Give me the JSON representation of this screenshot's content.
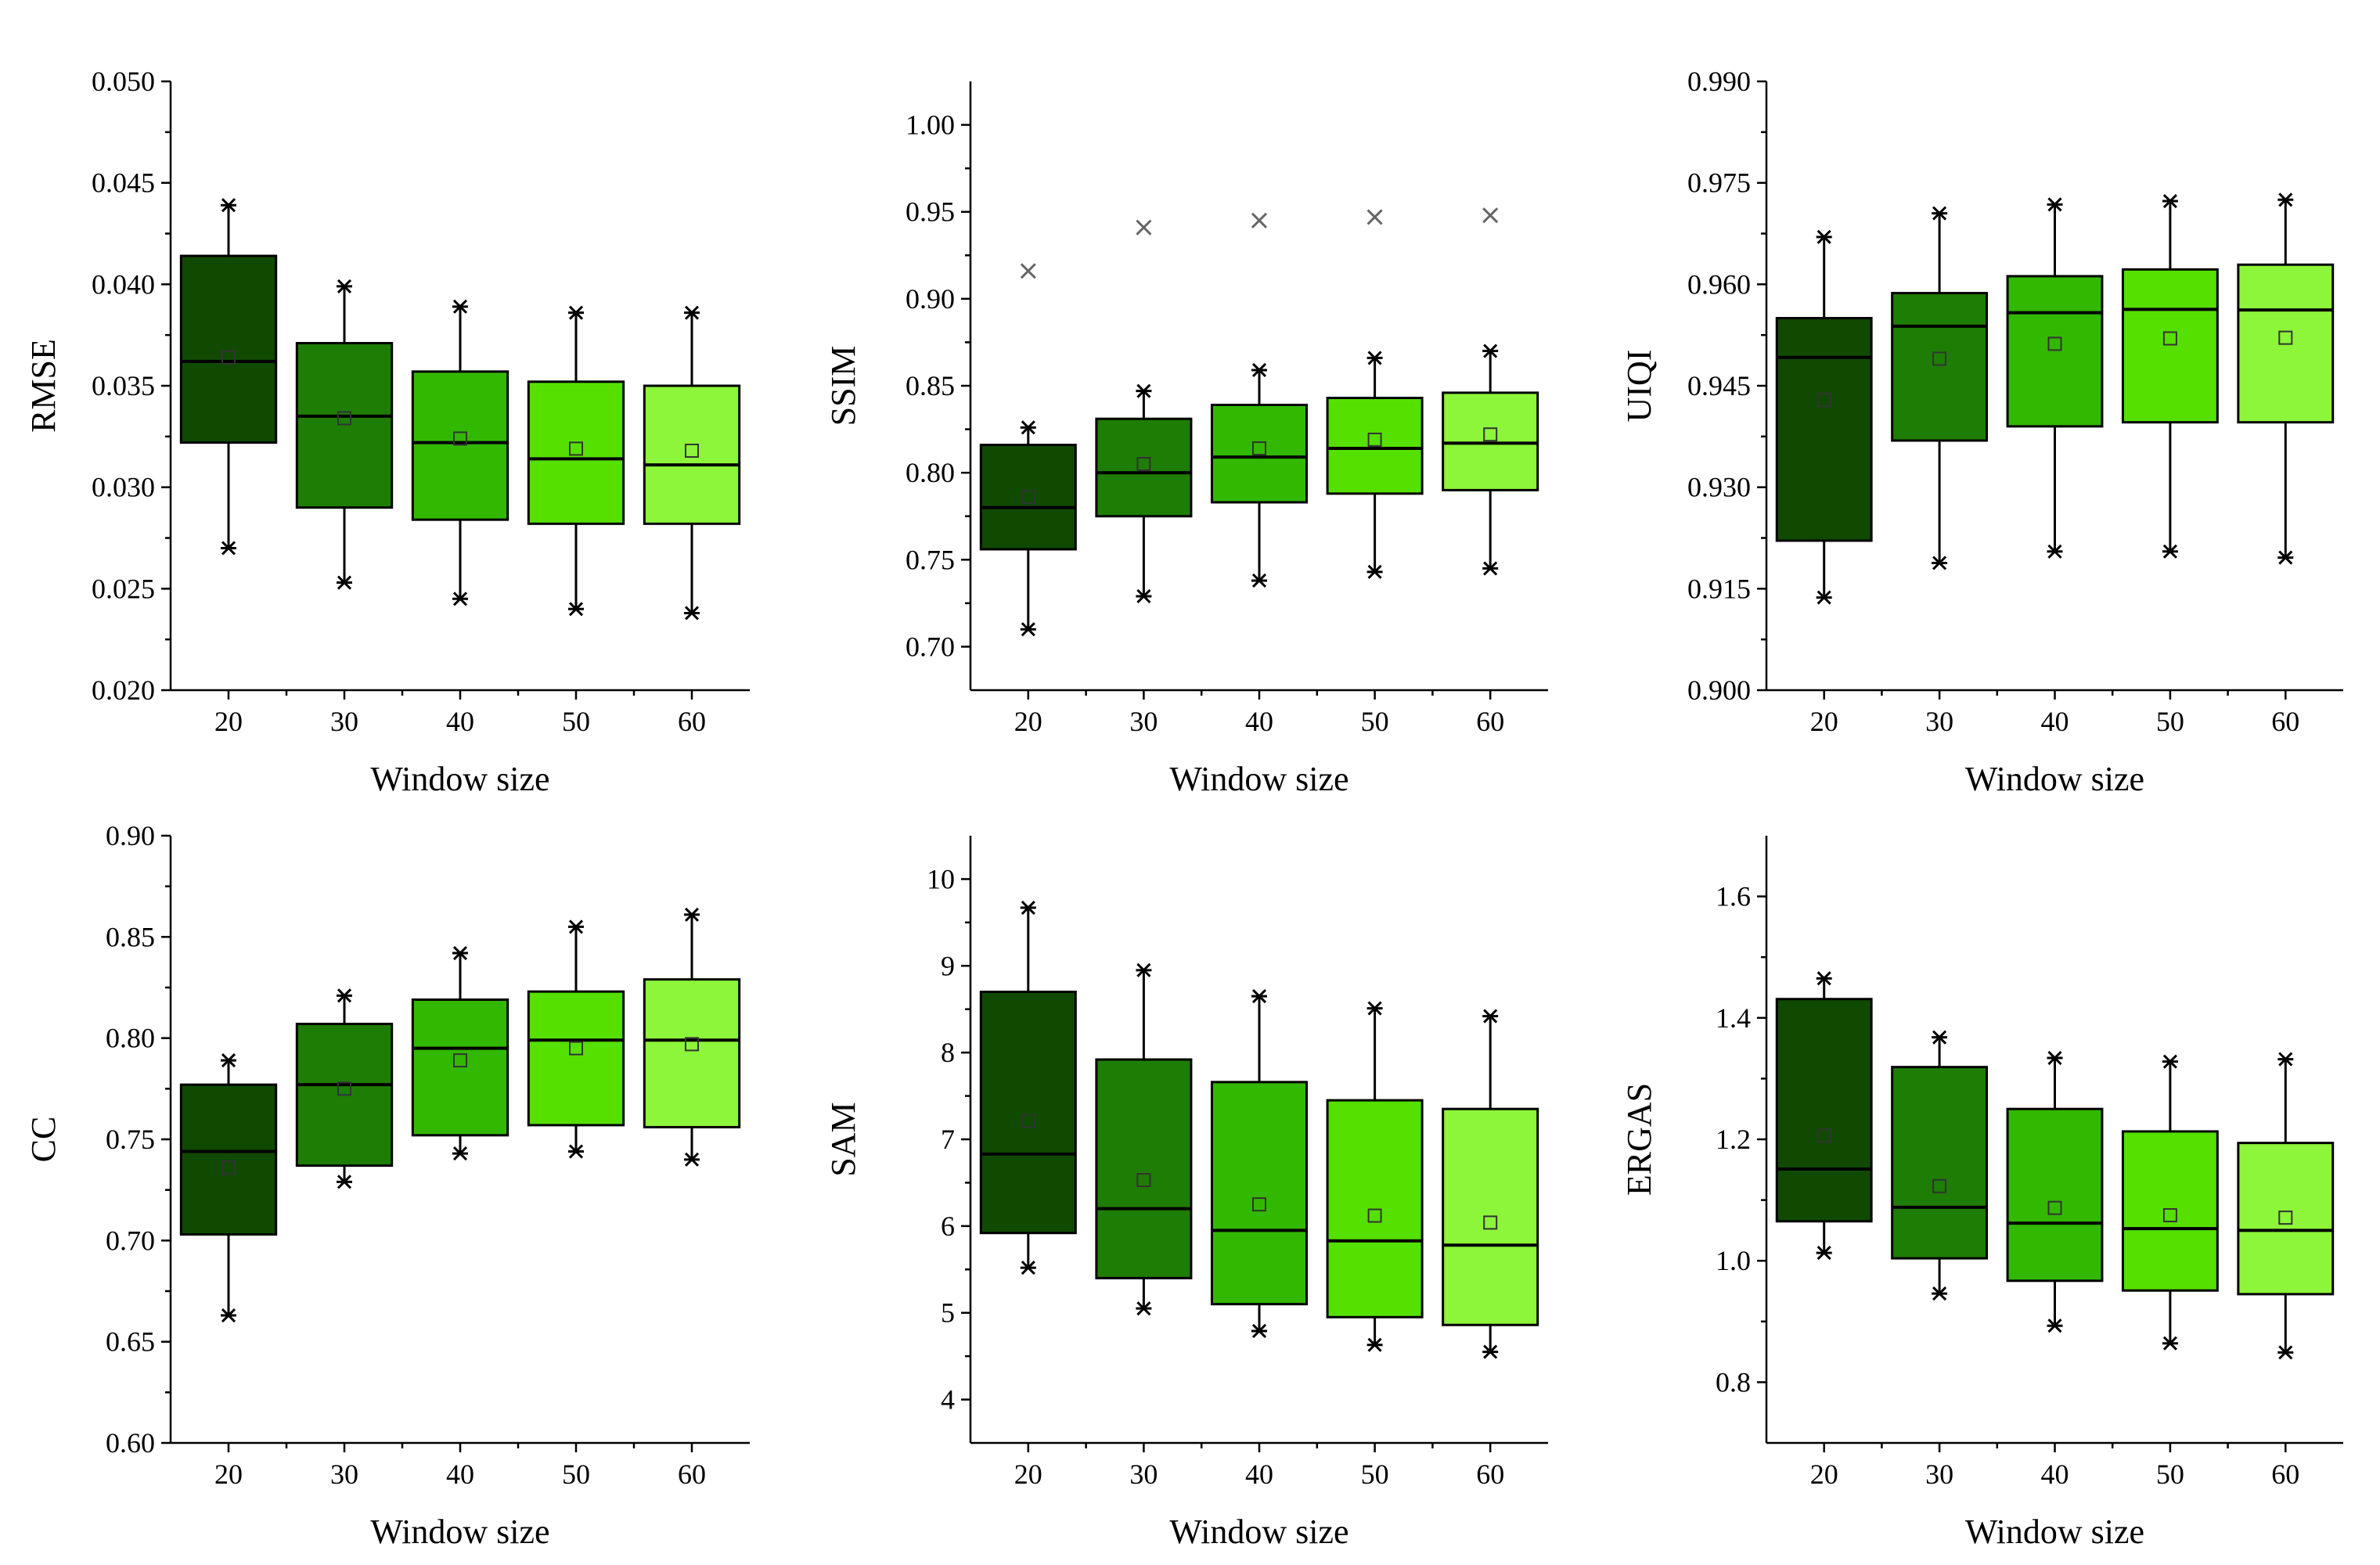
{
  "chart_data": [
    {
      "type": "box",
      "ylabel": "RMSE",
      "xlabel": "Window size",
      "categories": [
        "20",
        "30",
        "40",
        "50",
        "60"
      ],
      "ylim": [
        0.02,
        0.05
      ],
      "yticks": [
        "0.020",
        "0.025",
        "0.030",
        "0.035",
        "0.040",
        "0.045",
        "0.050"
      ],
      "boxes": [
        {
          "min": 0.027,
          "q1": 0.0322,
          "median": 0.0362,
          "q3": 0.0414,
          "max": 0.0439,
          "mean": 0.0364
        },
        {
          "min": 0.0253,
          "q1": 0.029,
          "median": 0.0335,
          "q3": 0.0371,
          "max": 0.0399,
          "mean": 0.0334
        },
        {
          "min": 0.0245,
          "q1": 0.0284,
          "median": 0.0322,
          "q3": 0.0357,
          "max": 0.0389,
          "mean": 0.0324
        },
        {
          "min": 0.024,
          "q1": 0.0282,
          "median": 0.0314,
          "q3": 0.0352,
          "max": 0.0386,
          "mean": 0.0319
        },
        {
          "min": 0.0238,
          "q1": 0.0282,
          "median": 0.0311,
          "q3": 0.035,
          "max": 0.0386,
          "mean": 0.0318
        }
      ]
    },
    {
      "type": "box",
      "ylabel": "SSIM",
      "xlabel": "Window size",
      "categories": [
        "20",
        "30",
        "40",
        "50",
        "60"
      ],
      "ylim": [
        0.675,
        1.025
      ],
      "yticks": [
        "0.70",
        "0.75",
        "0.80",
        "0.85",
        "0.90",
        "0.95",
        "1.00"
      ],
      "boxes": [
        {
          "min": 0.71,
          "q1": 0.756,
          "median": 0.78,
          "q3": 0.816,
          "max": 0.826,
          "mean": 0.786,
          "outlier": 0.916
        },
        {
          "min": 0.729,
          "q1": 0.775,
          "median": 0.8,
          "q3": 0.831,
          "max": 0.847,
          "mean": 0.805,
          "outlier": 0.941
        },
        {
          "min": 0.738,
          "q1": 0.783,
          "median": 0.809,
          "q3": 0.839,
          "max": 0.859,
          "mean": 0.814,
          "outlier": 0.945
        },
        {
          "min": 0.743,
          "q1": 0.788,
          "median": 0.814,
          "q3": 0.843,
          "max": 0.866,
          "mean": 0.819,
          "outlier": 0.947
        },
        {
          "min": 0.745,
          "q1": 0.79,
          "median": 0.817,
          "q3": 0.846,
          "max": 0.87,
          "mean": 0.822,
          "outlier": 0.948
        }
      ]
    },
    {
      "type": "box",
      "ylabel": "UIQI",
      "xlabel": "Window size",
      "categories": [
        "20",
        "30",
        "40",
        "50",
        "60"
      ],
      "ylim": [
        0.9,
        0.99
      ],
      "yticks": [
        "0.900",
        "0.915",
        "0.930",
        "0.945",
        "0.960",
        "0.975",
        "0.990"
      ],
      "boxes": [
        {
          "min": 0.9137,
          "q1": 0.9221,
          "median": 0.9492,
          "q3": 0.955,
          "max": 0.967,
          "mean": 0.9429
        },
        {
          "min": 0.9188,
          "q1": 0.9369,
          "median": 0.9538,
          "q3": 0.9587,
          "max": 0.9705,
          "mean": 0.949
        },
        {
          "min": 0.9205,
          "q1": 0.939,
          "median": 0.9558,
          "q3": 0.9612,
          "max": 0.9718,
          "mean": 0.9512
        },
        {
          "min": 0.9205,
          "q1": 0.9396,
          "median": 0.9563,
          "q3": 0.9622,
          "max": 0.9723,
          "mean": 0.952
        },
        {
          "min": 0.9196,
          "q1": 0.9396,
          "median": 0.9562,
          "q3": 0.9629,
          "max": 0.9725,
          "mean": 0.9521
        }
      ]
    },
    {
      "type": "box",
      "ylabel": "CC",
      "xlabel": "Window size",
      "categories": [
        "20",
        "30",
        "40",
        "50",
        "60"
      ],
      "ylim": [
        0.6,
        0.9
      ],
      "yticks": [
        "0.60",
        "0.65",
        "0.70",
        "0.75",
        "0.80",
        "0.85",
        "0.90"
      ],
      "boxes": [
        {
          "min": 0.663,
          "q1": 0.703,
          "median": 0.744,
          "q3": 0.777,
          "max": 0.789,
          "mean": 0.736
        },
        {
          "min": 0.729,
          "q1": 0.737,
          "median": 0.777,
          "q3": 0.807,
          "max": 0.821,
          "mean": 0.775
        },
        {
          "min": 0.743,
          "q1": 0.752,
          "median": 0.795,
          "q3": 0.819,
          "max": 0.842,
          "mean": 0.789
        },
        {
          "min": 0.744,
          "q1": 0.757,
          "median": 0.799,
          "q3": 0.823,
          "max": 0.855,
          "mean": 0.795
        },
        {
          "min": 0.74,
          "q1": 0.756,
          "median": 0.799,
          "q3": 0.829,
          "max": 0.861,
          "mean": 0.797
        }
      ]
    },
    {
      "type": "box",
      "ylabel": "SAM",
      "xlabel": "Window size",
      "categories": [
        "20",
        "30",
        "40",
        "50",
        "60"
      ],
      "ylim": [
        3.5,
        10.5
      ],
      "yticks": [
        "4",
        "5",
        "6",
        "7",
        "8",
        "9",
        "10"
      ],
      "boxes": [
        {
          "min": 5.52,
          "q1": 5.92,
          "median": 6.83,
          "q3": 8.7,
          "max": 9.67,
          "mean": 7.21
        },
        {
          "min": 5.05,
          "q1": 5.4,
          "median": 6.2,
          "q3": 7.92,
          "max": 8.95,
          "mean": 6.53
        },
        {
          "min": 4.79,
          "q1": 5.1,
          "median": 5.95,
          "q3": 7.66,
          "max": 8.65,
          "mean": 6.25
        },
        {
          "min": 4.63,
          "q1": 4.95,
          "median": 5.83,
          "q3": 7.45,
          "max": 8.51,
          "mean": 6.12
        },
        {
          "min": 4.55,
          "q1": 4.86,
          "median": 5.78,
          "q3": 7.35,
          "max": 8.42,
          "mean": 6.04
        }
      ]
    },
    {
      "type": "box",
      "ylabel": "ERGAS",
      "xlabel": "Window size",
      "categories": [
        "20",
        "30",
        "40",
        "50",
        "60"
      ],
      "ylim": [
        0.7,
        1.7
      ],
      "yticks": [
        "0.8",
        "1.0",
        "1.2",
        "1.4",
        "1.6"
      ],
      "boxes": [
        {
          "min": 1.013,
          "q1": 1.065,
          "median": 1.151,
          "q3": 1.431,
          "max": 1.465,
          "mean": 1.206
        },
        {
          "min": 0.946,
          "q1": 1.004,
          "median": 1.088,
          "q3": 1.319,
          "max": 1.368,
          "mean": 1.123
        },
        {
          "min": 0.893,
          "q1": 0.967,
          "median": 1.062,
          "q3": 1.25,
          "max": 1.334,
          "mean": 1.087
        },
        {
          "min": 0.864,
          "q1": 0.951,
          "median": 1.053,
          "q3": 1.213,
          "max": 1.328,
          "mean": 1.075
        },
        {
          "min": 0.849,
          "q1": 0.945,
          "median": 1.05,
          "q3": 1.194,
          "max": 1.332,
          "mean": 1.071
        }
      ]
    }
  ],
  "colors": [
    "#0f4a00",
    "#1e7d05",
    "#33b800",
    "#55e000",
    "#8df53a"
  ]
}
